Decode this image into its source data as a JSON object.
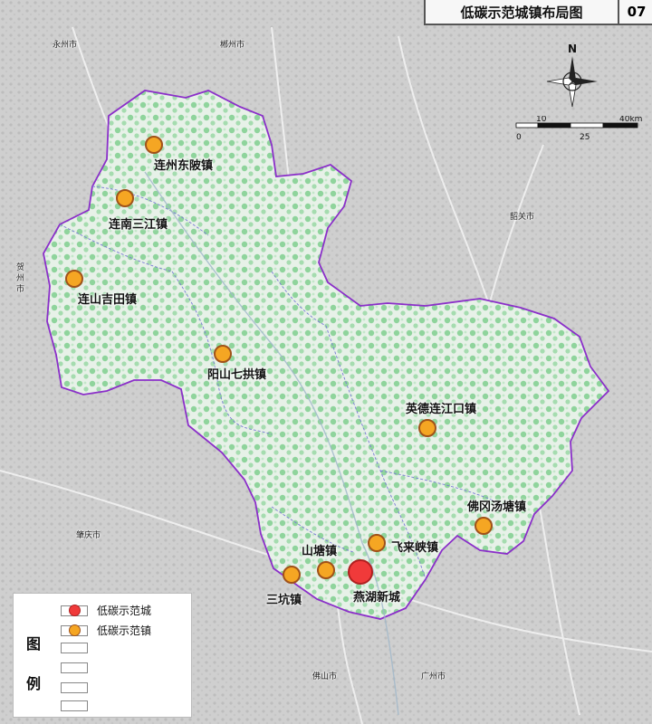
{
  "header": {
    "title": "低碳示范城镇布局图",
    "page_no": "07"
  },
  "compass": {
    "north_label": "N"
  },
  "scale_bar": {
    "ticks": [
      "0",
      "10",
      "25",
      "40km"
    ]
  },
  "colors": {
    "boundary": "#8b2fc9",
    "town_fill": "#f5a623",
    "town_border": "#a0521a",
    "city_fill": "#f03a3a",
    "terrain_green": "#7fcf8e",
    "outside_region": "#d0d0d0",
    "inside_region": "#e9f2ea"
  },
  "sites": [
    {
      "name": "连州东陂镇",
      "category": "低碳示范镇"
    },
    {
      "name": "连南三江镇",
      "category": "低碳示范镇"
    },
    {
      "name": "连山吉田镇",
      "category": "低碳示范镇"
    },
    {
      "name": "阳山七拱镇",
      "category": "低碳示范镇"
    },
    {
      "name": "英德连江口镇",
      "category": "低碳示范镇"
    },
    {
      "name": "佛冈汤塘镇",
      "category": "低碳示范镇"
    },
    {
      "name": "飞来峡镇",
      "category": "低碳示范镇"
    },
    {
      "name": "山塘镇",
      "category": "低碳示范镇"
    },
    {
      "name": "三坑镇",
      "category": "低碳示范镇"
    },
    {
      "name": "燕湖新城",
      "category": "低碳示范城"
    }
  ],
  "context_labels": {
    "yongzhou": "永州市",
    "chenzhou": "郴州市",
    "shaoguan": "韶关市",
    "hezhou": "贺州市",
    "zhaoqing": "肇庆市",
    "foshan": "佛山市",
    "guangzhou": "广州市"
  },
  "legend": {
    "title_1": "图",
    "title_2": "例",
    "items": [
      {
        "label": "低碳示范城",
        "symbol": "red-circle"
      },
      {
        "label": "低碳示范镇",
        "symbol": "orange-circle"
      },
      {
        "label": "",
        "symbol": "empty"
      },
      {
        "label": "",
        "symbol": "empty"
      },
      {
        "label": "",
        "symbol": "empty"
      },
      {
        "label": "",
        "symbol": "empty"
      }
    ]
  }
}
